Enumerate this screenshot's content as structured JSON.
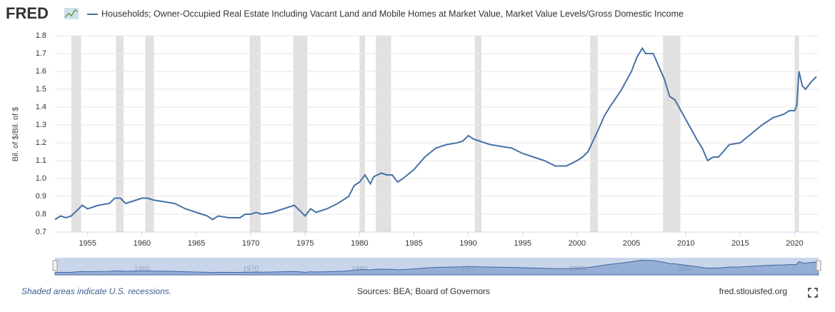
{
  "logo": "FRED",
  "chart_data": {
    "type": "line",
    "ylabel": "Bil. of $/Bil. of $",
    "x": [
      1952,
      1952.5,
      1953,
      1953.5,
      1954,
      1954.5,
      1955,
      1956,
      1957,
      1957.5,
      1958,
      1958.5,
      1959,
      1960,
      1960.5,
      1961,
      1962,
      1963,
      1964,
      1965,
      1966,
      1966.5,
      1967,
      1968,
      1969,
      1969.5,
      1970,
      1970.5,
      1971,
      1972,
      1973,
      1974,
      1974.5,
      1975,
      1975.5,
      1976,
      1977,
      1978,
      1979,
      1979.5,
      1980,
      1980.5,
      1981,
      1981.3,
      1982,
      1982.5,
      1983,
      1983.5,
      1984,
      1985,
      1986,
      1987,
      1988,
      1989,
      1989.5,
      1990,
      1990.5,
      1991,
      1992,
      1993,
      1994,
      1995,
      1996,
      1997,
      1998,
      1999,
      2000,
      2000.5,
      2001,
      2002,
      2002.5,
      2003,
      2004,
      2005,
      2005.5,
      2006,
      2006.3,
      2007,
      2007.5,
      2008,
      2008.5,
      2009,
      2010,
      2011,
      2011.5,
      2012,
      2012.5,
      2013,
      2014,
      2015,
      2016,
      2017,
      2018,
      2019,
      2019.5,
      2020,
      2020.2,
      2020.4,
      2020.7,
      2021,
      2021.5,
      2022
    ],
    "series": [
      {
        "name": "Households; Owner-Occupied Real Estate Including Vacant Land and Mobile Homes at Market Value, Market Value Levels/Gross Domestic Income",
        "color": "#4572a7",
        "values": [
          0.77,
          0.79,
          0.78,
          0.79,
          0.82,
          0.85,
          0.83,
          0.85,
          0.86,
          0.89,
          0.89,
          0.86,
          0.87,
          0.89,
          0.89,
          0.88,
          0.87,
          0.86,
          0.83,
          0.81,
          0.79,
          0.77,
          0.79,
          0.78,
          0.78,
          0.8,
          0.8,
          0.81,
          0.8,
          0.81,
          0.83,
          0.85,
          0.82,
          0.79,
          0.83,
          0.81,
          0.83,
          0.86,
          0.9,
          0.96,
          0.98,
          1.02,
          0.97,
          1.01,
          1.03,
          1.02,
          1.02,
          0.98,
          1.0,
          1.05,
          1.12,
          1.17,
          1.19,
          1.2,
          1.21,
          1.24,
          1.22,
          1.21,
          1.19,
          1.18,
          1.17,
          1.14,
          1.12,
          1.1,
          1.07,
          1.07,
          1.1,
          1.12,
          1.15,
          1.28,
          1.35,
          1.4,
          1.49,
          1.6,
          1.68,
          1.73,
          1.7,
          1.7,
          1.63,
          1.56,
          1.46,
          1.44,
          1.33,
          1.22,
          1.17,
          1.1,
          1.12,
          1.12,
          1.19,
          1.2,
          1.25,
          1.3,
          1.34,
          1.36,
          1.38,
          1.38,
          1.41,
          1.6,
          1.52,
          1.5,
          1.54,
          1.57
        ]
      }
    ],
    "recessions": [
      [
        1953.5,
        1954.4
      ],
      [
        1957.6,
        1958.3
      ],
      [
        1960.3,
        1961.1
      ],
      [
        1969.9,
        1970.9
      ],
      [
        1973.9,
        1975.2
      ],
      [
        1980.0,
        1980.5
      ],
      [
        1981.5,
        1982.9
      ],
      [
        1990.6,
        1991.2
      ],
      [
        2001.2,
        2001.9
      ],
      [
        2007.9,
        2009.5
      ],
      [
        2020.0,
        2020.4
      ]
    ],
    "xlim": [
      1952,
      2022.2
    ],
    "ylim": [
      0.7,
      1.8
    ],
    "xticks": [
      1955,
      1960,
      1965,
      1970,
      1975,
      1980,
      1985,
      1990,
      1995,
      2000,
      2005,
      2010,
      2015,
      2020
    ],
    "yticks": [
      0.7,
      0.8,
      0.9,
      {
        "value": 1,
        "label": "1.0"
      },
      1.1,
      1.2,
      1.3,
      1.4,
      1.5,
      1.6,
      1.7,
      1.8
    ],
    "navigator_ticks": [
      1960,
      1970,
      1980,
      1990,
      2000,
      2010
    ],
    "grid": true
  },
  "footer": {
    "note": "Shaded areas indicate U.S. recessions.",
    "sources": "Sources: BEA; Board of Governors",
    "site": "fred.stlouisfed.org"
  }
}
